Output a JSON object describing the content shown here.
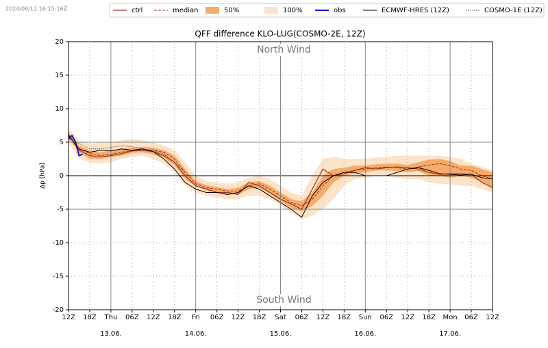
{
  "chart_data": {
    "type": "line",
    "title": "QFF difference KLO-LUG(COSMO-2E, 12Z)",
    "timestamp": "2024/06/12 16:15:16Z",
    "ylabel": "Δp [hPa]",
    "annotations": [
      {
        "text": "North Wind"
      },
      {
        "text": "South Wind"
      }
    ],
    "xlim": [
      0,
      120
    ],
    "xticks": [
      {
        "value": 0,
        "label": "12Z"
      },
      {
        "value": 6,
        "label": "18Z"
      },
      {
        "value": 12,
        "label": "Thu",
        "date": "13.06."
      },
      {
        "value": 18,
        "label": "06Z"
      },
      {
        "value": 24,
        "label": "12Z"
      },
      {
        "value": 30,
        "label": "18Z"
      },
      {
        "value": 36,
        "label": "Fri",
        "date": "14.06."
      },
      {
        "value": 42,
        "label": "06Z"
      },
      {
        "value": 48,
        "label": "12Z"
      },
      {
        "value": 54,
        "label": "18Z"
      },
      {
        "value": 60,
        "label": "Sat",
        "date": "15.06."
      },
      {
        "value": 66,
        "label": "06Z"
      },
      {
        "value": 72,
        "label": "12Z"
      },
      {
        "value": 78,
        "label": "18Z"
      },
      {
        "value": 84,
        "label": "Sun",
        "date": "16.06."
      },
      {
        "value": 90,
        "label": "06Z"
      },
      {
        "value": 96,
        "label": "12Z"
      },
      {
        "value": 102,
        "label": "18Z"
      },
      {
        "value": 108,
        "label": "Mon",
        "date": "17.06."
      },
      {
        "value": 114,
        "label": "06Z"
      },
      {
        "value": 120,
        "label": "12Z"
      }
    ],
    "ylim": [
      -20,
      20
    ],
    "yticks": [
      -20,
      -15,
      -10,
      -5,
      0,
      5,
      10,
      15,
      20
    ],
    "grid": true,
    "hlines": [
      {
        "value": 0,
        "color": "#000000"
      },
      {
        "value": 5,
        "color": "#888888"
      },
      {
        "value": -5,
        "color": "#888888"
      }
    ],
    "x": [
      0,
      3,
      6,
      9,
      12,
      15,
      18,
      21,
      24,
      27,
      30,
      33,
      36,
      39,
      42,
      45,
      48,
      51,
      54,
      57,
      60,
      63,
      66,
      69,
      72,
      75,
      78,
      81,
      84,
      87,
      90,
      93,
      96,
      99,
      102,
      105,
      108,
      111,
      114,
      117,
      120
    ],
    "bands": [
      {
        "name": "50%",
        "color": "#f5ac6a",
        "low": [
          5.5,
          3.5,
          2.5,
          2.5,
          2.8,
          3,
          3.4,
          3.5,
          3.2,
          2.7,
          1.5,
          -0.5,
          -1.6,
          -2.2,
          -2.5,
          -2.8,
          -2.8,
          -2,
          -1.8,
          -2.7,
          -3.8,
          -4.8,
          -5.3,
          -4.5,
          -3,
          -1,
          0,
          0.3,
          0.5,
          0.8,
          0.8,
          0.7,
          0.5,
          0.7,
          0,
          0,
          -0.3,
          0,
          -0.3,
          -1,
          -1.8
        ],
        "high": [
          6.5,
          4.5,
          3.8,
          3.5,
          3.8,
          4,
          4.2,
          4.3,
          4.2,
          3.8,
          3,
          1,
          -0.8,
          -1.4,
          -1.7,
          -2,
          -1.8,
          -1,
          -0.8,
          -1.5,
          -2.5,
          -3.5,
          -3.8,
          -2.5,
          0,
          1,
          1.2,
          1.5,
          1.5,
          1.7,
          1.8,
          1.8,
          1.6,
          2,
          2.4,
          2.5,
          2.2,
          1.5,
          1.5,
          1,
          0.5
        ]
      },
      {
        "name": "100%",
        "color": "#fde3c8",
        "low": [
          5,
          2.5,
          2,
          1.8,
          2,
          2.5,
          2.8,
          3,
          2.5,
          1.8,
          0.5,
          -1.5,
          -2.5,
          -3,
          -3.3,
          -3.5,
          -3.5,
          -3,
          -3,
          -3.5,
          -4.5,
          -5.5,
          -6.5,
          -6,
          -5,
          -3.5,
          -1.5,
          -0.5,
          -0.3,
          0,
          0,
          -0.3,
          -0.5,
          -0.5,
          -1,
          -1.2,
          -1.3,
          -1.5,
          -1.5,
          -2,
          -2.5
        ],
        "high": [
          7,
          5.3,
          4.8,
          5,
          5,
          5.3,
          5.5,
          5.3,
          5,
          4.5,
          3.8,
          2,
          0,
          -0.8,
          -1,
          -1.2,
          -1,
          -0.3,
          0,
          -0.5,
          -1.5,
          -2.5,
          -3,
          0,
          2.5,
          2.8,
          2.5,
          2.5,
          2.5,
          2.7,
          2.8,
          3,
          3,
          3,
          3,
          3,
          2.8,
          2.5,
          1.8,
          1.3,
          0.8
        ]
      }
    ],
    "series": [
      {
        "name": "ctrl",
        "color": "#a0302a",
        "linestyle": "solid",
        "width": 1.2,
        "values": [
          6.2,
          3.8,
          3,
          2.8,
          3,
          3.3,
          3.7,
          3.8,
          3.6,
          3,
          2,
          0,
          -1.5,
          -2,
          -2.5,
          -2.5,
          -2.8,
          -1,
          -1.5,
          -2.5,
          -3.5,
          -4.2,
          -5,
          -2,
          1,
          0,
          0.3,
          0.8,
          1.2,
          1,
          1.2,
          1.3,
          1.2,
          1,
          0.5,
          0.2,
          0.3,
          0.3,
          0.2,
          -1,
          -1.8
        ]
      },
      {
        "name": "median",
        "color": "#a0302a",
        "linestyle": "dashed",
        "width": 1,
        "values": [
          6,
          4,
          3.3,
          3,
          3.2,
          3.5,
          3.8,
          3.9,
          3.8,
          3.5,
          2.5,
          0.5,
          -1.2,
          -1.8,
          -2,
          -2.3,
          -2.3,
          -1.5,
          -1.2,
          -2,
          -3,
          -4,
          -4.5,
          -3.5,
          -1.5,
          0,
          0.5,
          0.8,
          1,
          1.2,
          1.3,
          1.2,
          1,
          1.3,
          1.6,
          1.8,
          1.5,
          1,
          0.8,
          0,
          -0.5
        ]
      },
      {
        "name": "obs",
        "color": "#1010c8",
        "linestyle": "solid",
        "width": 2,
        "x": [
          0,
          1,
          2,
          3,
          4
        ],
        "values": [
          5.5,
          6,
          5,
          3,
          3.2
        ]
      },
      {
        "name": "ECMWF-HRES (12Z)",
        "color": "#000000",
        "linestyle": "solid",
        "width": 1,
        "values": [
          6,
          4,
          3.5,
          3.8,
          3.7,
          4,
          3.8,
          4,
          3.6,
          2.5,
          1,
          -1,
          -2,
          -2.5,
          -2.5,
          -2.8,
          -2.5,
          -1.5,
          -2,
          -3,
          -4,
          -5,
          -6.2,
          -3,
          -1,
          0,
          0.5,
          0.5,
          0,
          0,
          0,
          0.5,
          1,
          1.2,
          0.8,
          0.3,
          0.2,
          0.1,
          0.2,
          -0.3,
          -0.5
        ]
      },
      {
        "name": "COSMO-1E (12Z)",
        "color": "#555555",
        "linestyle": "dotted",
        "width": 1,
        "values": [
          5.5,
          4.8,
          4,
          4,
          4.2,
          4.5,
          4.3,
          4,
          3.8,
          3.2,
          2,
          0.5,
          null,
          null,
          null,
          null,
          null,
          null,
          null,
          null,
          null,
          null,
          null,
          null,
          null,
          null,
          null,
          null,
          null,
          null,
          null,
          null,
          null,
          null,
          null,
          null,
          null,
          null,
          null,
          null,
          null
        ]
      }
    ]
  }
}
